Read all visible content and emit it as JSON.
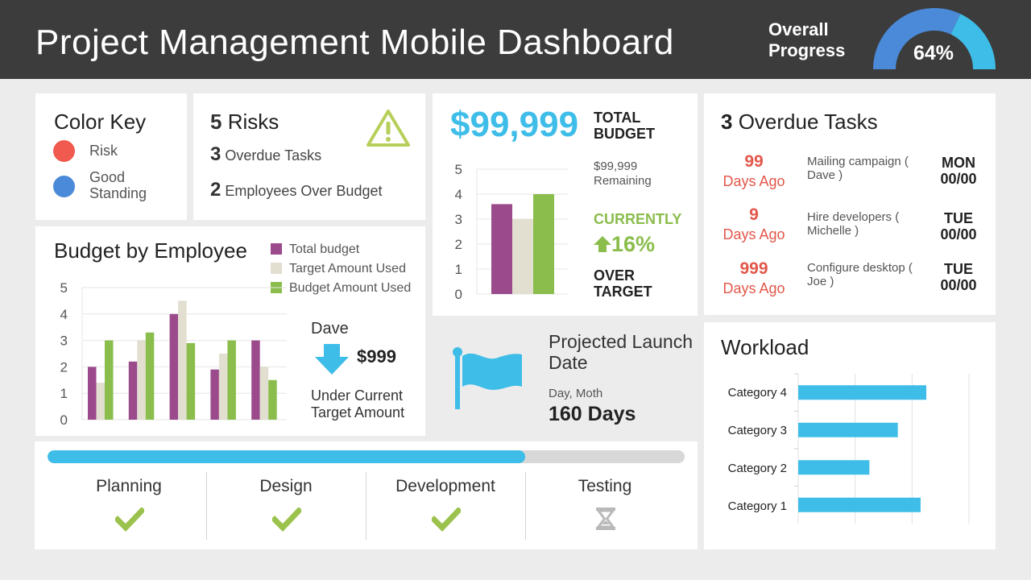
{
  "header": {
    "title": "Project Management Mobile Dashboard",
    "overall_label": "Overall Progress",
    "progress_value": "64%",
    "progress_fraction": 0.64
  },
  "color_key": {
    "title": "Color Key",
    "items": [
      {
        "label": "Risk",
        "color": "#f05a4f"
      },
      {
        "label": "Good Standing",
        "color": "#4a8ad8"
      }
    ]
  },
  "risks": {
    "items": [
      {
        "count": "5",
        "label": "Risks"
      },
      {
        "count": "3",
        "label": "Overdue Tasks"
      },
      {
        "count": "2",
        "label": "Employees Over Budget"
      }
    ],
    "icon": "warning-icon"
  },
  "budget_by_employee": {
    "title": "Budget by Employee",
    "legend": [
      {
        "label": "Total budget",
        "color": "#9b4a8c"
      },
      {
        "label": "Target Amount Used",
        "color": "#e2ded0"
      },
      {
        "label": "Budget Amount Used",
        "color": "#8bbd4c"
      }
    ],
    "employee_name": "Dave",
    "amount": "$999",
    "note": "Under Current Target Amount",
    "arrow_icon": "arrow-down-icon"
  },
  "total_budget": {
    "value": "$99,999",
    "label": "TOTAL BUDGET",
    "remaining": "$99,999 Remaining",
    "currently": "CURRENTLY",
    "percent": "16%",
    "over_target": "OVER TARGET"
  },
  "overdue": {
    "count": "3",
    "title": "Overdue Tasks",
    "tasks": [
      {
        "days": "99",
        "ago": "Days Ago",
        "task": "Mailing campaign ( Dave )",
        "day": "MON",
        "date": "00/00"
      },
      {
        "days": "9",
        "ago": "Days Ago",
        "task": "Hire developers ( Michelle )",
        "day": "TUE",
        "date": "00/00"
      },
      {
        "days": "999",
        "ago": "Days Ago",
        "task": "Configure desktop ( Joe )",
        "day": "TUE",
        "date": "00/00"
      }
    ]
  },
  "launch": {
    "title": "Projected Launch Date",
    "subtitle": "Day, Moth",
    "days": "160 Days",
    "icon": "flag-icon"
  },
  "workload": {
    "title": "Workload"
  },
  "progress": {
    "fraction": 0.75,
    "phases": [
      {
        "label": "Planning",
        "status": "done",
        "icon": "checkmark-icon"
      },
      {
        "label": "Design",
        "status": "done",
        "icon": "checkmark-icon"
      },
      {
        "label": "Development",
        "status": "done",
        "icon": "checkmark-icon"
      },
      {
        "label": "Testing",
        "status": "pending",
        "icon": "hourglass-icon"
      }
    ]
  },
  "chart_data": [
    {
      "type": "bar",
      "title": "Budget by Employee",
      "categories": [
        "",
        "",
        "",
        "",
        ""
      ],
      "series": [
        {
          "name": "Total budget",
          "values": [
            2.0,
            2.2,
            4.0,
            1.9,
            3.0
          ]
        },
        {
          "name": "Target Amount Used",
          "values": [
            1.4,
            3.0,
            4.5,
            2.5,
            2.0
          ]
        },
        {
          "name": "Budget Amount Used",
          "values": [
            3.0,
            3.3,
            2.9,
            3.0,
            1.5
          ]
        }
      ],
      "yticks": [
        "0",
        "1",
        "2",
        "3",
        "4",
        "5"
      ],
      "ylim": [
        0,
        5
      ],
      "grid": true,
      "legend": "top-right"
    },
    {
      "type": "bar",
      "categories": [
        ""
      ],
      "series": [
        {
          "values": [
            3.6
          ]
        },
        {
          "values": [
            3.0
          ]
        },
        {
          "values": [
            4.0
          ]
        }
      ],
      "yticks": [
        "0",
        "1",
        "2",
        "3",
        "4",
        "5"
      ],
      "ylim": [
        0,
        5
      ],
      "grid": true
    },
    {
      "type": "bar",
      "orientation": "horizontal",
      "title": "Workload",
      "categories": [
        "Category 4",
        "Category 3",
        "Category 2",
        "Category 1"
      ],
      "values": [
        4.5,
        3.5,
        2.5,
        4.3
      ],
      "xlim": [
        0,
        6
      ],
      "grid": true
    }
  ]
}
